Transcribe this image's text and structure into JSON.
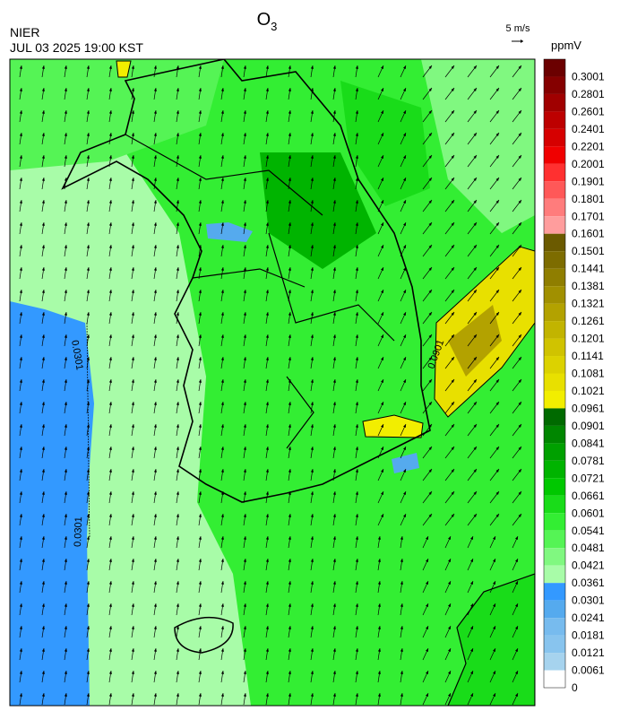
{
  "header": {
    "title": {
      "text": "O",
      "subscript": "3"
    },
    "source": "NIER",
    "datetime": "JUL 03 2025 19:00 KST",
    "vector_scale": "5 m/s",
    "unit": "ppmV"
  },
  "colorbar": {
    "labels": [
      "0.3001",
      "0.2801",
      "0.2601",
      "0.2401",
      "0.2201",
      "0.2001",
      "0.1901",
      "0.1801",
      "0.1701",
      "0.1601",
      "0.1501",
      "0.1441",
      "0.1381",
      "0.1321",
      "0.1261",
      "0.1201",
      "0.1141",
      "0.1081",
      "0.1021",
      "0.0961",
      "0.0901",
      "0.0841",
      "0.0781",
      "0.0721",
      "0.0661",
      "0.0601",
      "0.0541",
      "0.0481",
      "0.0421",
      "0.0361",
      "0.0301",
      "0.0241",
      "0.0181",
      "0.0121",
      "0.0061",
      "0"
    ],
    "colors": [
      "#6b0000",
      "#850000",
      "#a00000",
      "#bd0000",
      "#d60000",
      "#f00000",
      "#ff3030",
      "#ff5858",
      "#ff7c7c",
      "#ff9d9d",
      "#6b5a00",
      "#7d6c00",
      "#8f7e00",
      "#a19000",
      "#b3a200",
      "#c2b400",
      "#d0c300",
      "#dcd200",
      "#e8e000",
      "#f2ee00",
      "#006a00",
      "#008600",
      "#00a000",
      "#00b400",
      "#00c800",
      "#19dc19",
      "#33ee33",
      "#55f455",
      "#80f880",
      "#a8fca8",
      "#3399ff",
      "#55aaee",
      "#77bbee",
      "#88c4ee",
      "#a6d3ee"
    ]
  },
  "map": {
    "contour_labels": [
      "0.0301",
      "0.0301",
      "0.0901"
    ]
  }
}
